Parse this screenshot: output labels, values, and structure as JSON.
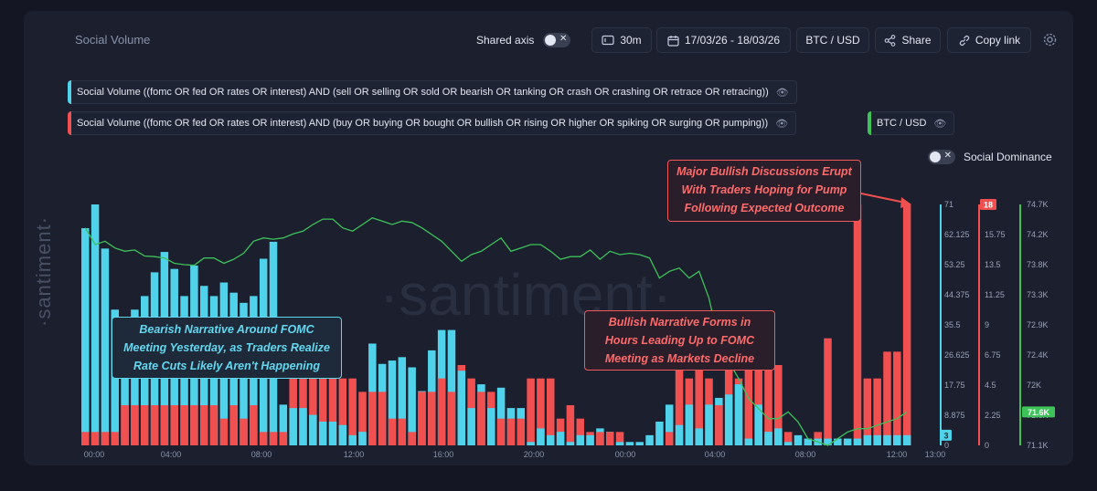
{
  "header": {
    "title": "Social Volume",
    "shared_axis_label": "Shared axis",
    "interval": "30m",
    "date_range": "17/03/26 - 18/03/26",
    "pair": "BTC / USD",
    "share": "Share",
    "copy_link": "Copy link"
  },
  "metrics": [
    {
      "label": "Social Volume ((fomc OR fed OR rates OR interest) AND (sell OR selling OR sold OR bearish OR tanking OR crash OR crashing OR retrace OR retracing))",
      "color": "#4fd2ea"
    },
    {
      "label": "Social Volume ((fomc OR fed OR rates OR interest) AND (buy OR buying OR bought OR bullish OR rising OR higher OR spiking OR surging OR pumping))",
      "color": "#f05050"
    },
    {
      "label": "BTC / USD",
      "color": "#3ec25a"
    }
  ],
  "social_dominance_label": "Social Dominance",
  "watermark": "·santiment·",
  "annotations": {
    "bearish": [
      "Bearish Narrative Around FOMC",
      "Meeting Yesterday, as Traders Realize",
      "Rate Cuts Likely Aren't Happening"
    ],
    "bullish": [
      "Bullish Narrative Forms in",
      "Hours Leading Up to  FOMC",
      "Meeting as Markets Decline"
    ],
    "major": [
      "Major Bullish Discussions Erupt",
      "With Traders Hoping for Pump",
      "Following Expected Outcome"
    ]
  },
  "chart_data": {
    "type": "bar",
    "x_labels": [
      "00:00",
      "04:00",
      "08:00",
      "12:00",
      "16:00",
      "20:00",
      "00:00",
      "04:00",
      "08:00",
      "12:00",
      "13:00"
    ],
    "series": [
      {
        "name": "Social Volume ((fomc OR fed OR rates OR interest) AND (sell OR selling OR sold OR bearish OR tanking OR crash OR crashing OR retrace OR retracing))",
        "axis": "left",
        "color": "#4fd2ea",
        "values": [
          64,
          71,
          58,
          40,
          36,
          40,
          44,
          51,
          57,
          52,
          44,
          53,
          47,
          44,
          48,
          45,
          42,
          44,
          55,
          60,
          12,
          11,
          11,
          9,
          7,
          7,
          6,
          3,
          4,
          30,
          24,
          25,
          26,
          23,
          16,
          28,
          34,
          34,
          22,
          11,
          18,
          11,
          17,
          11,
          11,
          1,
          5,
          3,
          4,
          1,
          3,
          3,
          5,
          4,
          1,
          1,
          1,
          3,
          7,
          12,
          6,
          12,
          5,
          12,
          14,
          15,
          18,
          2,
          12,
          4,
          5,
          1,
          3,
          2,
          2,
          2,
          2,
          2,
          2,
          3,
          3,
          3,
          3,
          3
        ]
      },
      {
        "name": "Social Volume ((fomc OR fed OR rates OR interest) AND (buy OR buying OR bought OR bullish OR rising OR higher OR spiking OR surging OR pumping))",
        "axis": "middle",
        "color": "#f05050",
        "values": [
          1,
          1,
          1,
          1,
          3,
          3,
          3,
          3,
          3,
          3,
          3,
          3,
          3,
          3,
          2,
          3,
          2,
          3,
          1,
          1,
          1,
          5,
          5,
          5,
          5,
          5,
          5,
          5,
          4,
          4,
          4,
          2,
          2,
          1,
          4,
          4,
          5,
          4,
          6,
          5,
          4,
          4,
          2,
          2,
          2,
          5,
          5,
          5,
          2,
          3,
          2,
          1,
          1,
          1,
          1,
          0,
          0,
          0,
          0,
          1,
          9,
          5,
          9,
          5,
          3,
          8,
          5,
          7,
          6,
          10,
          6,
          1,
          0,
          0,
          1,
          8,
          0,
          0,
          18,
          5,
          5,
          7,
          7,
          18
        ]
      },
      {
        "name": "BTC / USD",
        "axis": "right",
        "color": "#3ec25a",
        "values": [
          74350,
          74100,
          74150,
          74050,
          74000,
          74020,
          73930,
          73920,
          73900,
          73820,
          73800,
          73790,
          73900,
          73900,
          73820,
          73880,
          73970,
          74150,
          74200,
          74180,
          74200,
          74260,
          74300,
          74400,
          74480,
          74480,
          74350,
          74300,
          74400,
          74500,
          74450,
          74400,
          74450,
          74430,
          74350,
          74250,
          74150,
          74000,
          73850,
          73950,
          74000,
          74100,
          74200,
          74000,
          74050,
          74100,
          74100,
          74000,
          73880,
          73920,
          73920,
          74020,
          73880,
          74000,
          73950,
          73970,
          73950,
          73900,
          73600,
          73700,
          73750,
          73600,
          73700,
          73300,
          72650,
          72350,
          72100,
          71800,
          71650,
          71500,
          71500,
          71600,
          71450,
          71200,
          71150,
          71100,
          71200,
          71300,
          71350,
          71350,
          71400,
          71450,
          71500,
          71600
        ]
      }
    ],
    "y_axes": [
      {
        "ticks": [
          "71",
          "62.125",
          "53.25",
          "44.375",
          "35.5",
          "26.625",
          "17.75",
          "8.875",
          "0"
        ],
        "ylim": [
          0,
          71
        ],
        "current": "3",
        "color": "#4fd2ea"
      },
      {
        "ticks": [
          "18",
          "15.75",
          "13.5",
          "11.25",
          "9",
          "6.75",
          "4.5",
          "2.25",
          "0"
        ],
        "ylim": [
          0,
          18
        ],
        "current": "18",
        "color": "#f05050"
      },
      {
        "ticks": [
          "74.7K",
          "74.2K",
          "73.8K",
          "73.3K",
          "72.9K",
          "72.4K",
          "72K",
          "71.6K",
          "71.1K"
        ],
        "ylim": [
          71100,
          74700
        ],
        "current": "71.6K",
        "color": "#3ec25a"
      }
    ],
    "legend_placement": "top-left"
  }
}
